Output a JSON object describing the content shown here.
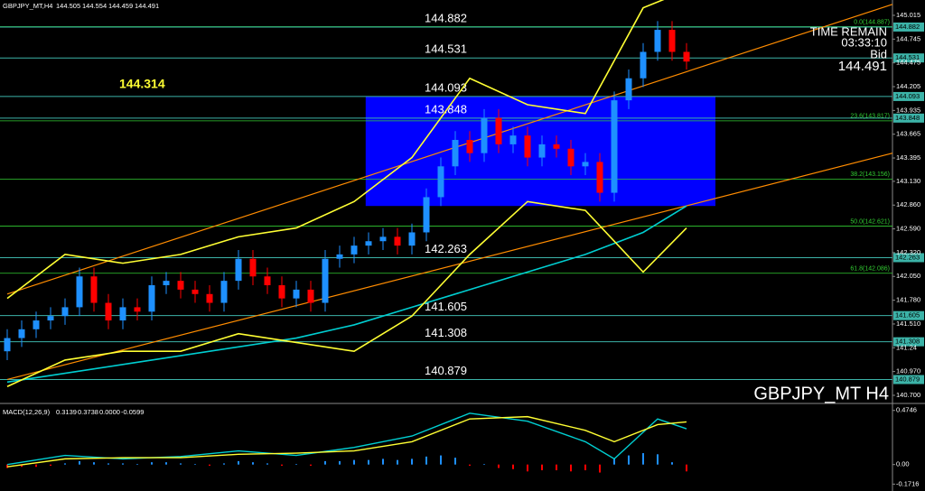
{
  "chart_data": [
    {
      "type": "candlestick",
      "title": "GBPJPY_MT,H4",
      "info": [
        144.505,
        144.554,
        144.459,
        144.491
      ],
      "time_remain_label": "TIME REMAIN",
      "time_remain": "03:33:10",
      "bid_label": "Bid",
      "bid": 144.491,
      "watermark": "GBPJPY_MT H4",
      "price_note": 144.314,
      "ylim": [
        140.628,
        145.189
      ],
      "yticks": [
        145.015,
        144.745,
        144.475,
        144.205,
        143.935,
        143.665,
        143.395,
        {
          "value": 143.13,
          "label": "143.130"
        },
        {
          "value": 142.86,
          "label": "142.860"
        },
        {
          "value": 142.59,
          "label": "142.590"
        },
        {
          "value": 142.32,
          "label": "142.320"
        },
        {
          "value": 142.05,
          "label": "142.050"
        },
        {
          "value": 141.78,
          "label": "141.780"
        },
        {
          "value": 141.51,
          "label": "141.510"
        },
        141.24,
        {
          "value": 140.97,
          "label": "140.970"
        },
        {
          "value": 140.7,
          "label": "140.700"
        }
      ],
      "up_color": "#1e90ff",
      "down_color": "#ff0000",
      "open": [
        141.2,
        141.35,
        141.45,
        141.55,
        141.6,
        141.7,
        142.05,
        141.75,
        141.55,
        141.7,
        141.65,
        141.95,
        142.0,
        141.9,
        141.85,
        141.75,
        142.0,
        142.25,
        142.05,
        141.95,
        141.8,
        141.9,
        141.75,
        142.25,
        142.3,
        142.4,
        142.45,
        142.5,
        142.4,
        142.55,
        142.95,
        143.3,
        143.6,
        143.45,
        143.85,
        143.55,
        143.65,
        143.4,
        143.55,
        143.5,
        143.3,
        143.35,
        143.0,
        144.05,
        144.3,
        144.6,
        144.85,
        144.6
      ],
      "high": [
        141.45,
        141.55,
        141.65,
        141.7,
        141.8,
        142.15,
        142.15,
        141.85,
        141.8,
        141.8,
        142.05,
        142.1,
        142.1,
        142.0,
        141.95,
        142.1,
        142.35,
        142.35,
        142.15,
        142.05,
        142.0,
        142.0,
        142.35,
        142.4,
        142.5,
        142.55,
        142.6,
        142.6,
        142.65,
        143.05,
        143.4,
        143.7,
        143.7,
        143.95,
        143.95,
        143.75,
        143.75,
        143.65,
        143.65,
        143.6,
        143.45,
        143.45,
        144.15,
        144.4,
        144.7,
        144.95,
        144.95,
        144.7
      ],
      "low": [
        141.1,
        141.25,
        141.35,
        141.45,
        141.5,
        141.6,
        141.65,
        141.45,
        141.45,
        141.55,
        141.55,
        141.85,
        141.8,
        141.75,
        141.65,
        141.65,
        141.9,
        141.95,
        141.85,
        141.7,
        141.7,
        141.65,
        141.65,
        142.15,
        142.2,
        142.3,
        142.35,
        142.3,
        142.3,
        142.45,
        142.85,
        143.2,
        143.35,
        143.35,
        143.45,
        143.45,
        143.3,
        143.3,
        143.4,
        143.2,
        143.2,
        142.9,
        142.9,
        143.95,
        144.2,
        144.5,
        144.5,
        144.4
      ],
      "close": [
        141.35,
        141.45,
        141.55,
        141.6,
        141.7,
        142.05,
        141.75,
        141.55,
        141.7,
        141.65,
        141.95,
        142.0,
        141.9,
        141.85,
        141.75,
        142.0,
        142.25,
        142.05,
        141.95,
        141.8,
        141.9,
        141.75,
        142.25,
        142.3,
        142.4,
        142.45,
        142.5,
        142.4,
        142.55,
        142.95,
        143.3,
        143.6,
        143.45,
        143.85,
        143.55,
        143.65,
        143.4,
        143.55,
        143.5,
        143.3,
        143.35,
        143.0,
        144.05,
        144.3,
        144.6,
        144.85,
        144.6,
        144.49
      ],
      "zone": {
        "color": "#0000ff",
        "x": [
          24.8,
          49
        ],
        "values": [
          144.093,
          142.85
        ]
      },
      "trendlines": [
        {
          "color": "#ff8c00",
          "x": [
            0,
            61.25
          ],
          "values": [
            141.85,
            145.14
          ]
        },
        {
          "color": "#ff8c00",
          "x": [
            0,
            61.25
          ],
          "values": [
            140.88,
            143.45
          ]
        }
      ],
      "indicators": [
        {
          "color": "#00ced1",
          "x": [
            0,
            4,
            8,
            12,
            16,
            20,
            24,
            28,
            32,
            36,
            40,
            44,
            47
          ],
          "values": [
            140.85,
            140.95,
            141.05,
            141.15,
            141.25,
            141.35,
            141.5,
            141.7,
            141.9,
            142.1,
            142.3,
            142.55,
            142.85
          ]
        },
        {
          "color": "#ffff33",
          "x": [
            0,
            4,
            8,
            12,
            16,
            20,
            24,
            28,
            32,
            36,
            40,
            44,
            47
          ],
          "values": [
            141.8,
            142.3,
            142.2,
            142.3,
            142.5,
            142.6,
            142.9,
            143.4,
            144.3,
            144.0,
            143.9,
            145.1,
            145.3
          ]
        },
        {
          "color": "#ffff33",
          "x": [
            0,
            4,
            8,
            12,
            16,
            20,
            24,
            28,
            32,
            36,
            40,
            44,
            47
          ],
          "values": [
            140.8,
            141.1,
            141.2,
            141.2,
            141.4,
            141.3,
            141.2,
            141.6,
            142.3,
            142.9,
            142.8,
            142.1,
            142.6
          ]
        }
      ],
      "level_color": "#3cb3a8",
      "levels": [
        144.882,
        144.531,
        144.093,
        143.848,
        142.263,
        141.605,
        141.308,
        140.879
      ],
      "fib_color": "#32cd32",
      "fib": [
        {
          "value": 144.887,
          "label": "0.0(144.887)"
        },
        {
          "value": 143.817,
          "label": "23.6(143.817)"
        },
        {
          "value": 143.156,
          "label": "38.2(143.156)"
        },
        {
          "value": 142.621,
          "label": "50.0(142.621)"
        },
        {
          "value": 142.086,
          "label": "61.8(142.086)"
        }
      ]
    },
    {
      "type": "macd",
      "title": "MACD(12,26,9)",
      "info": [
        0.3139,
        0.3738,
        {
          "value": 0,
          "label": "0.0000"
        },
        -0.0599
      ],
      "ylim": [
        -0.232,
        0.52
      ],
      "yticks": [
        0.4746,
        {
          "value": 0,
          "label": "0.00"
        },
        -0.1716
      ],
      "histogram": [
        -0.03,
        -0.02,
        -0.02,
        -0.01,
        0.01,
        0.03,
        0.02,
        0.01,
        0.01,
        0.005,
        0.02,
        0.02,
        0.01,
        0.005,
        -0.01,
        0.01,
        0.03,
        0.02,
        0.01,
        -0.01,
        0.005,
        -0.01,
        0.03,
        0.03,
        0.04,
        0.04,
        0.05,
        0.04,
        0.05,
        0.07,
        0.08,
        0.06,
        -0.01,
        0.005,
        -0.03,
        -0.04,
        -0.06,
        -0.05,
        -0.05,
        -0.06,
        -0.05,
        -0.07,
        0.05,
        0.08,
        0.1,
        0.09,
        0.02,
        -0.0599
      ],
      "up_color": "#1e90ff",
      "down_color": "#ff0000",
      "lines": [
        {
          "color": "#00ced1",
          "x": [
            0,
            4,
            8,
            12,
            16,
            20,
            24,
            28,
            32,
            36,
            40,
            42,
            45,
            47
          ],
          "values": [
            0.0,
            0.08,
            0.05,
            0.07,
            0.12,
            0.08,
            0.15,
            0.25,
            0.45,
            0.38,
            0.2,
            0.05,
            0.4,
            0.3139
          ]
        },
        {
          "color": "#ffff33",
          "x": [
            0,
            4,
            8,
            12,
            16,
            20,
            24,
            28,
            32,
            36,
            40,
            42,
            45,
            47
          ],
          "values": [
            -0.02,
            0.05,
            0.06,
            0.06,
            0.09,
            0.1,
            0.12,
            0.2,
            0.4,
            0.42,
            0.3,
            0.2,
            0.35,
            0.3738
          ]
        }
      ]
    }
  ]
}
